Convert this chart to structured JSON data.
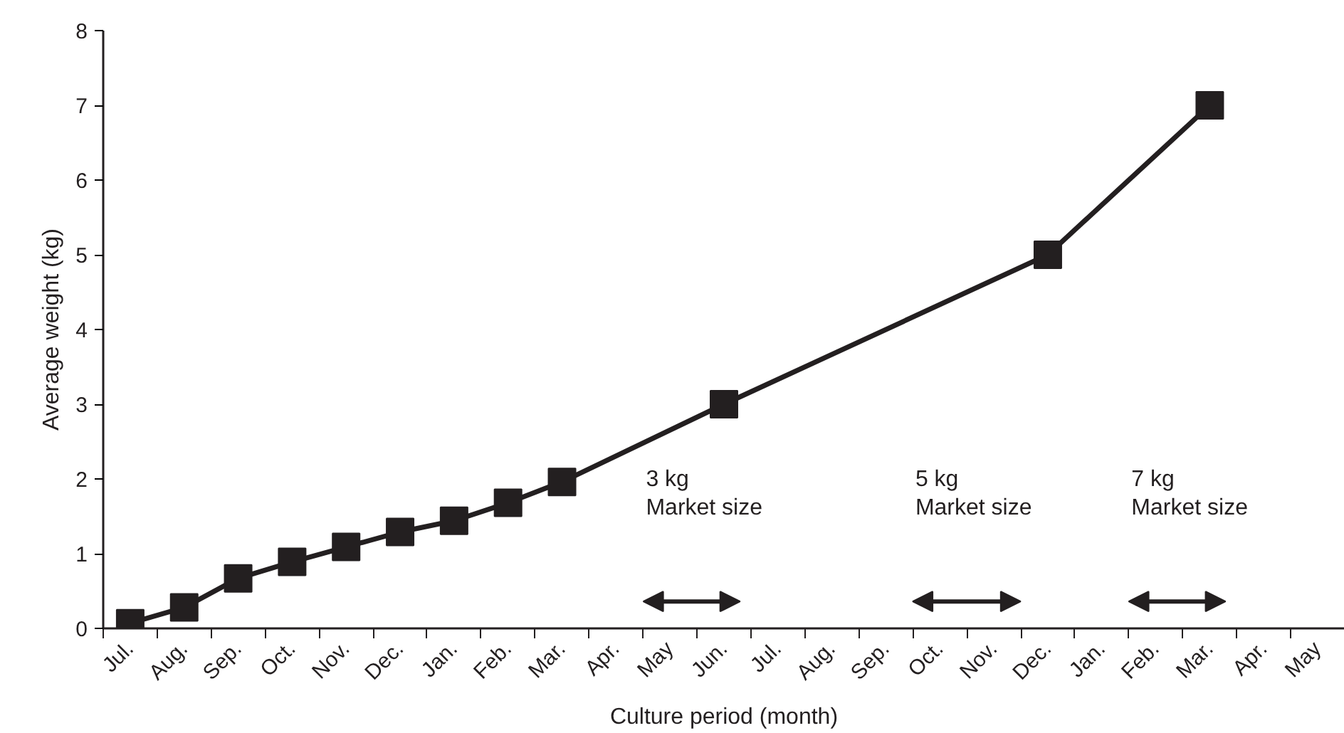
{
  "chart_data": {
    "type": "line",
    "xlabel": "Culture period (month)",
    "ylabel": "Average weight (kg)",
    "categories": [
      "Jul.",
      "Aug.",
      "Sep.",
      "Oct.",
      "Nov.",
      "Dec.",
      "Jan.",
      "Feb.",
      "Mar.",
      "Apr.",
      "May",
      "Jun.",
      "Jul.",
      "Aug.",
      "Sep.",
      "Oct.",
      "Nov.",
      "Dec.",
      "Jan.",
      "Feb.",
      "Mar.",
      "Apr.",
      "May"
    ],
    "series": [
      {
        "color": "#231f20",
        "values": [
          0.07,
          0.28,
          0.67,
          0.89,
          1.09,
          1.29,
          1.44,
          1.68,
          1.96,
          null,
          null,
          3.0,
          null,
          null,
          null,
          null,
          null,
          5.0,
          null,
          null,
          7.0,
          null,
          null
        ]
      }
    ],
    "ylim": [
      0,
      8
    ],
    "yticks": [
      0,
      1,
      2,
      3,
      4,
      5,
      6,
      7,
      8
    ],
    "annotations": [
      "3 kg\nMarket size",
      "5 kg\nMarket size",
      "7 kg\nMarket size"
    ],
    "marker": "square",
    "line_style": "solid"
  }
}
